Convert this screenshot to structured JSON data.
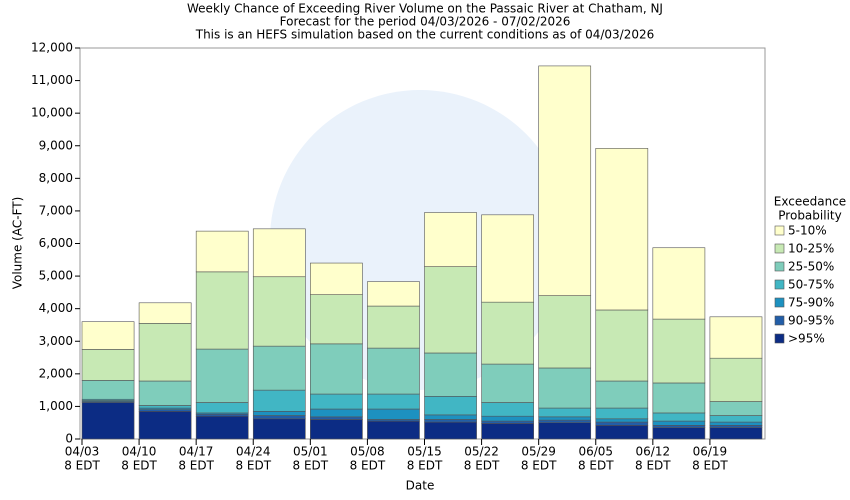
{
  "chart_data": {
    "type": "stacked_bar",
    "title": "Weekly Chance of Exceeding River Volume on the Passaic River at Chatham, NJ",
    "subtitle": [
      "Forecast for the period 04/03/2026 - 07/02/2026",
      "This is an HEFS simulation based on the current conditions as of 04/03/2026"
    ],
    "x_label": "Date",
    "y_label": "Volume (AC-FT)",
    "categories": [
      "04/03",
      "04/10",
      "04/17",
      "04/24",
      "05/01",
      "05/08",
      "05/15",
      "05/22",
      "05/29",
      "06/05",
      "06/12",
      "06/19"
    ],
    "x_sublabel": "8 EDT",
    "legend_title": [
      "Exceedance",
      "Probability"
    ],
    "legend_position": "right",
    "grid": false,
    "ylim": [
      0,
      12000
    ],
    "yticks": [
      0,
      {
        "value": 1000,
        "label": "1,000"
      },
      {
        "value": 2000,
        "label": "2,000"
      },
      {
        "value": 3000,
        "label": "3,000"
      },
      {
        "value": 4000,
        "label": "4,000"
      },
      {
        "value": 5000,
        "label": "5,000"
      },
      {
        "value": 6000,
        "label": "6,000"
      },
      {
        "value": 7000,
        "label": "7,000"
      },
      {
        "value": 8000,
        "label": "8,000"
      },
      {
        "value": 9000,
        "label": "9,000"
      },
      {
        "value": 10000,
        "label": "10,000"
      },
      {
        "value": 11000,
        "label": "11,000"
      },
      {
        "value": 12000,
        "label": "12,000"
      }
    ],
    "series": [
      {
        "name": ">95%",
        "color": "#0c2c84",
        "values": [
          1120,
          850,
          700,
          620,
          600,
          550,
          520,
          480,
          500,
          420,
          350,
          350
        ]
      },
      {
        "name": "90-95%",
        "color": "#225ea8",
        "values": [
          30,
          50,
          60,
          100,
          80,
          50,
          80,
          70,
          80,
          100,
          70,
          70
        ]
      },
      {
        "name": "75-90%",
        "color": "#1d91c0",
        "values": [
          30,
          50,
          40,
          130,
          240,
          320,
          140,
          150,
          100,
          100,
          130,
          100
        ]
      },
      {
        "name": "50-75%",
        "color": "#41b6c4",
        "values": [
          40,
          80,
          320,
          650,
          460,
          460,
          570,
          420,
          270,
          330,
          250,
          200
        ]
      },
      {
        "name": "25-50%",
        "color": "#7fcdbb",
        "values": [
          580,
          750,
          1640,
          1350,
          1540,
          1410,
          1330,
          1180,
          1230,
          830,
          920,
          430
        ]
      },
      {
        "name": "10-25%",
        "color": "#c7e9b4",
        "values": [
          950,
          1770,
          2370,
          2130,
          1510,
          1290,
          2650,
          1900,
          2220,
          2180,
          1960,
          1330
        ]
      },
      {
        "name": "5-10%",
        "color": "#ffffcc",
        "values": [
          850,
          630,
          1250,
          1470,
          970,
          750,
          1660,
          2680,
          7050,
          4960,
          2190,
          1270
        ]
      }
    ]
  }
}
